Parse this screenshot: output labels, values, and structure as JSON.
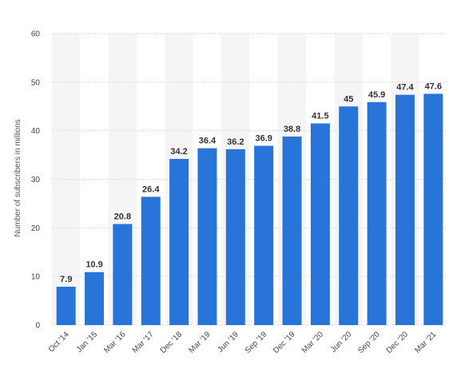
{
  "chart_data": {
    "type": "bar",
    "title": "",
    "xlabel": "",
    "ylabel": "Number of subscribers in millions",
    "ylim": [
      0,
      60
    ],
    "yticks": [
      0,
      10,
      20,
      30,
      40,
      50,
      60
    ],
    "grid": true,
    "categories": [
      "Oct '14",
      "Jan '15",
      "Mar '16",
      "Mar '17",
      "Dec '18",
      "Mar '19",
      "Jun '19",
      "Sep '19",
      "Dec '19",
      "Mar '20",
      "Jun '20",
      "Sep '20",
      "Dec '20",
      "Mar '21"
    ],
    "values": [
      7.9,
      10.9,
      20.8,
      26.4,
      34.2,
      36.4,
      36.2,
      36.9,
      38.8,
      41.5,
      45,
      45.9,
      47.4,
      47.6
    ],
    "bar_color": "#2874d9",
    "alt_band_color": "#f5f5f5"
  }
}
